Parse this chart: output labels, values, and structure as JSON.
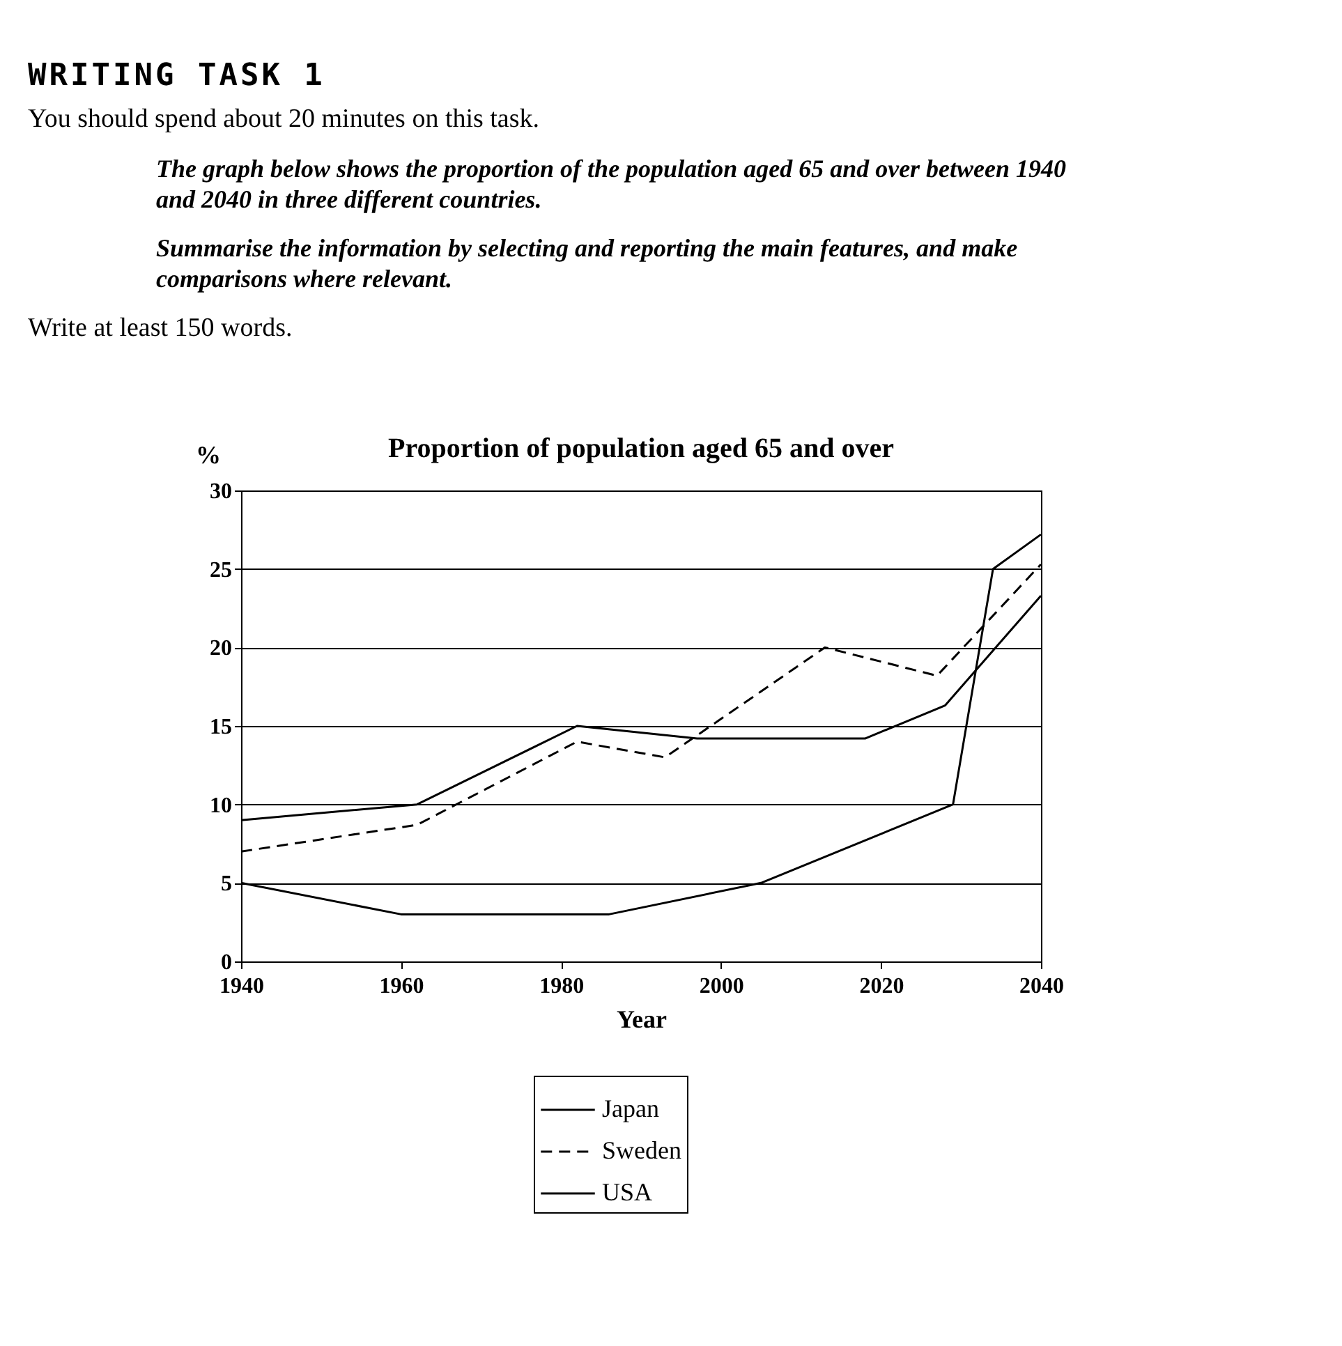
{
  "chart_data": {
    "type": "line",
    "title": "Proportion of population aged 65 and over",
    "xlabel": "Year",
    "ylabel": "%",
    "annotations": [
      "WRITING TASK 1",
      "You should spend about 20 minutes on this task.",
      "The graph below shows the proportion of the population aged 65 and over between 1940 and 2040 in three different countries.",
      "Summarise the information by selecting and reporting the main features, and make comparisons where relevant.",
      "Write at least 150 words."
    ],
    "xlim": [
      1940,
      2040
    ],
    "xticks": [
      1940,
      1960,
      1980,
      2000,
      2020,
      2040
    ],
    "ylim": [
      0,
      30
    ],
    "yticks": [
      0,
      5,
      10,
      15,
      20,
      25,
      30
    ],
    "grid": "y",
    "legend": "bottom",
    "marker": "none",
    "series": [
      {
        "name": "Japan",
        "color": "#000000",
        "line_style": "solid",
        "x": [
          1940,
          1960,
          1986,
          2005,
          2029,
          2034,
          2040
        ],
        "values": [
          5,
          3,
          3,
          5,
          10,
          25,
          27.2
        ]
      },
      {
        "name": "Sweden",
        "color": "#000000",
        "line_style": "dashed",
        "x": [
          1940,
          1962,
          1982,
          1993,
          2013,
          2027,
          2040
        ],
        "values": [
          7,
          8.7,
          14,
          13,
          20,
          18.2,
          25.3
        ]
      },
      {
        "name": "USA",
        "color": "#000000",
        "line_style": "solid",
        "x": [
          1940,
          1962,
          1982,
          1997,
          2018,
          2028,
          2040
        ],
        "values": [
          9,
          10,
          15,
          14.2,
          14.2,
          16.3,
          23.3
        ]
      }
    ]
  }
}
